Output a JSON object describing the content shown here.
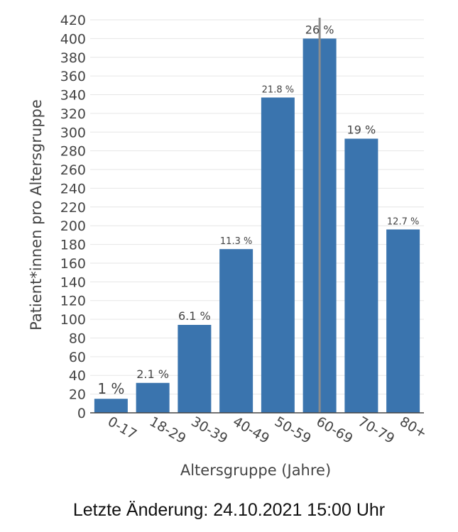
{
  "chart_data": {
    "type": "bar",
    "categories": [
      "0-17",
      "18-29",
      "30-39",
      "40-49",
      "50-59",
      "60-69",
      "70-79",
      "80+"
    ],
    "values": [
      15,
      32,
      94,
      175,
      337,
      400,
      293,
      196
    ],
    "data_labels": [
      "1 %",
      "2.1 %",
      "6.1 %",
      "11.3 %",
      "21.8 %",
      "26 %",
      "19 %",
      "12.7 %"
    ],
    "title": "",
    "xlabel": "Altersgruppe (Jahre)",
    "ylabel": "Patient*innen pro Altersgruppe",
    "ylim": [
      0,
      420
    ],
    "yticks": [
      0,
      20,
      40,
      60,
      80,
      100,
      120,
      140,
      160,
      180,
      200,
      220,
      240,
      260,
      280,
      300,
      320,
      340,
      360,
      380,
      400,
      420
    ],
    "grid": true,
    "bar_color": "#3a74ae",
    "hover_line_category": "60-69"
  },
  "footer": {
    "text": "Letzte Änderung: 24.10.2021 15:00 Uhr"
  }
}
